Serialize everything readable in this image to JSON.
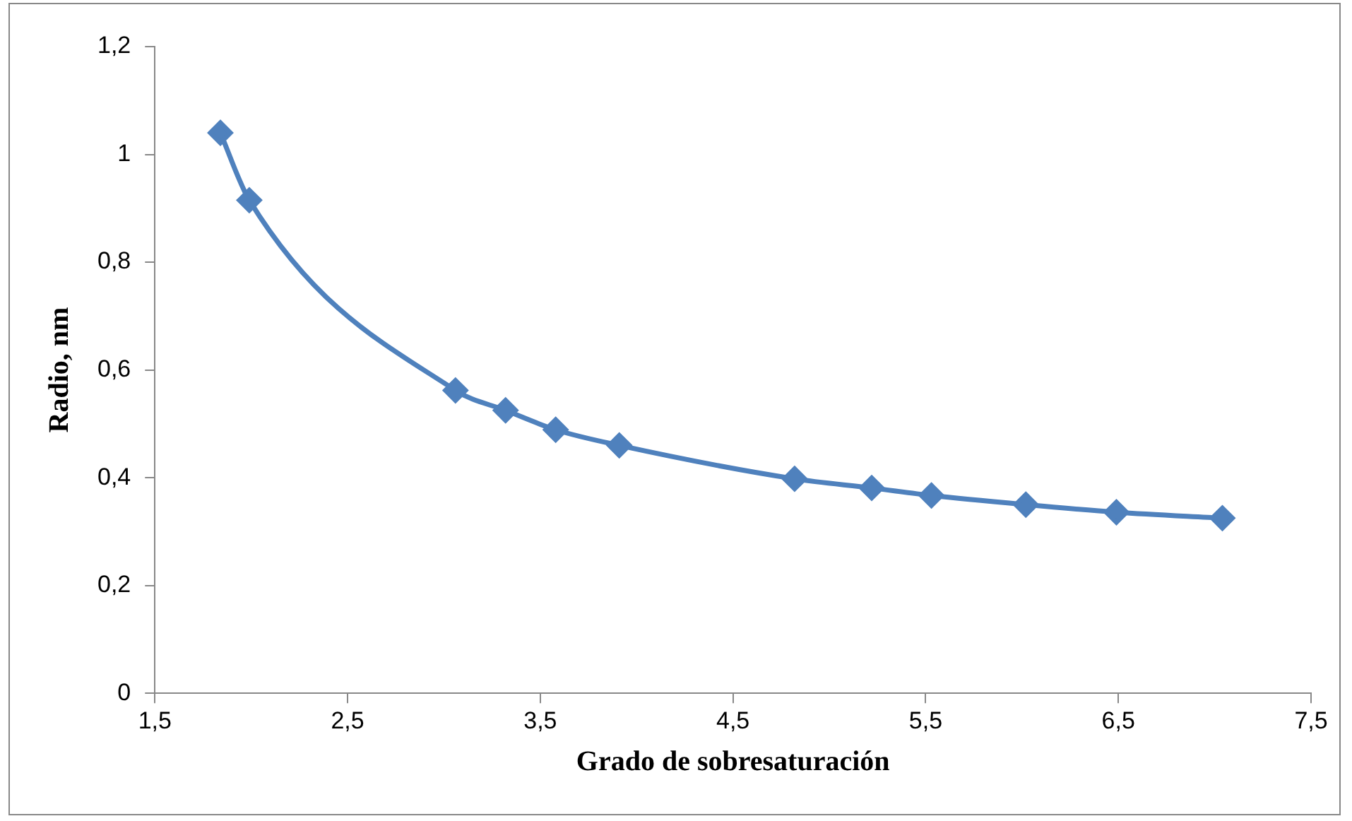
{
  "chart_data": {
    "type": "line",
    "xlabel": "Grado de sobresaturación",
    "ylabel": "Radio, nm",
    "x": [
      1.84,
      1.99,
      3.06,
      3.32,
      3.58,
      3.91,
      4.82,
      5.22,
      5.53,
      6.02,
      6.49,
      7.04
    ],
    "series": [
      {
        "color": "#4f81bd",
        "values": [
          1.04,
          0.915,
          0.562,
          0.525,
          0.489,
          0.46,
          0.398,
          0.381,
          0.367,
          0.35,
          0.336,
          0.325
        ]
      }
    ],
    "xlim": [
      1.5,
      7.5
    ],
    "xticks": [
      {
        "value": 1.5,
        "label": "1,5"
      },
      {
        "value": 2.5,
        "label": "2,5"
      },
      {
        "value": 3.5,
        "label": "3,5"
      },
      {
        "value": 4.5,
        "label": "4,5"
      },
      {
        "value": 5.5,
        "label": "5,5"
      },
      {
        "value": 6.5,
        "label": "6,5"
      },
      {
        "value": 7.5,
        "label": "7,5"
      }
    ],
    "ylim": [
      0,
      1.2
    ],
    "yticks": [
      0,
      {
        "value": 0.2,
        "label": "0,2"
      },
      {
        "value": 0.4,
        "label": "0,4"
      },
      {
        "value": 0.6,
        "label": "0,6"
      },
      {
        "value": 0.8,
        "label": "0,8"
      },
      1,
      {
        "value": 1.2,
        "label": "1,2"
      }
    ],
    "grid": false,
    "legend": false,
    "marker": "diamond",
    "line_style": "solid"
  }
}
